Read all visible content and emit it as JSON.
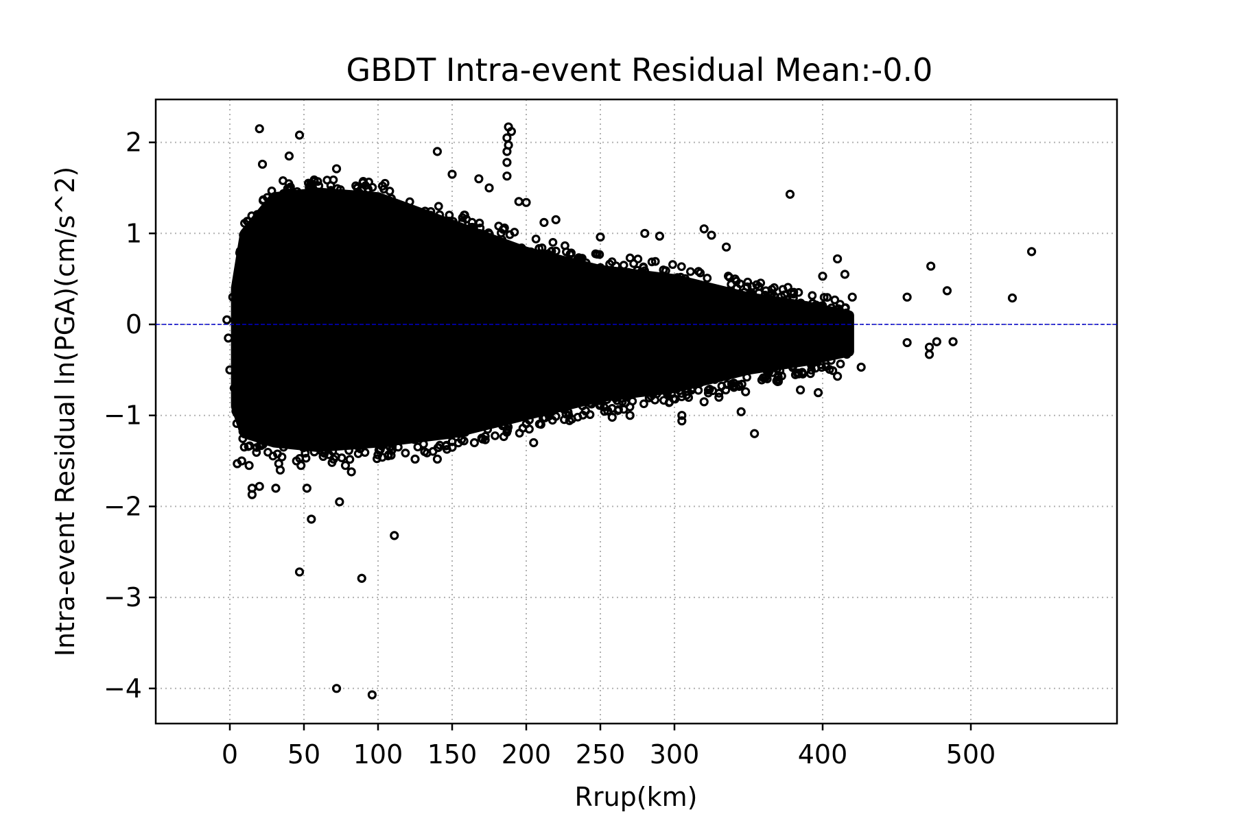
{
  "chart_data": {
    "type": "scatter",
    "title": "GBDT Intra-event Residual Mean:-0.0",
    "xlabel": "Rrup(km)",
    "ylabel": "Intra-event Residual ln(PGA)(cm/s^2)",
    "xlim": [
      -50,
      600
    ],
    "ylim": [
      -4.4,
      2.5
    ],
    "xticks": [
      0,
      50,
      100,
      150,
      200,
      250,
      300,
      400,
      500
    ],
    "yticks": [
      2,
      1,
      0,
      -1,
      -2,
      -3,
      -4
    ],
    "ytick_labels": [
      "2",
      "1",
      "0",
      "−1",
      "−2",
      "−3",
      "−4"
    ],
    "grid": true,
    "reference_line": {
      "y": 0,
      "color": "#0000cc",
      "style": "dashed"
    },
    "marker": {
      "shape": "open-circle",
      "color": "#000000"
    },
    "density": {
      "note_bands": "dense scatter cloud envelope by distance (km) as [x, lower, upper]",
      "envelope": [
        [
          4,
          -0.9,
          0.4
        ],
        [
          10,
          -1.2,
          1.0
        ],
        [
          30,
          -1.3,
          1.4
        ],
        [
          60,
          -1.35,
          1.45
        ],
        [
          100,
          -1.3,
          1.4
        ],
        [
          150,
          -1.2,
          1.1
        ],
        [
          200,
          -1.0,
          0.8
        ],
        [
          250,
          -0.8,
          0.6
        ],
        [
          300,
          -0.7,
          0.5
        ],
        [
          350,
          -0.5,
          0.3
        ],
        [
          390,
          -0.4,
          0.2
        ],
        [
          418,
          -0.3,
          0.1
        ]
      ]
    },
    "points": [
      [
        20,
        2.15
      ],
      [
        47,
        2.08
      ],
      [
        22,
        1.76
      ],
      [
        40,
        1.85
      ],
      [
        72,
        1.71
      ],
      [
        90,
        1.57
      ],
      [
        103,
        1.52
      ],
      [
        140,
        1.9
      ],
      [
        150,
        1.65
      ],
      [
        168,
        1.6
      ],
      [
        175,
        1.5
      ],
      [
        188,
        2.17
      ],
      [
        190,
        2.12
      ],
      [
        187,
        2.05
      ],
      [
        188,
        1.97
      ],
      [
        187,
        1.9
      ],
      [
        187,
        1.78
      ],
      [
        187,
        1.63
      ],
      [
        195,
        1.35
      ],
      [
        200,
        1.34
      ],
      [
        212,
        1.12
      ],
      [
        220,
        1.15
      ],
      [
        250,
        0.96
      ],
      [
        280,
        1.0
      ],
      [
        290,
        0.97
      ],
      [
        320,
        1.05
      ],
      [
        325,
        0.98
      ],
      [
        335,
        0.85
      ],
      [
        378,
        1.43
      ],
      [
        410,
        0.72
      ],
      [
        400,
        0.53
      ],
      [
        415,
        0.55
      ],
      [
        420,
        0.3
      ],
      [
        415,
        0.18
      ],
      [
        406,
        0.18
      ],
      [
        457,
        0.3
      ],
      [
        473,
        0.64
      ],
      [
        484,
        0.37
      ],
      [
        528,
        0.29
      ],
      [
        541,
        0.8
      ],
      [
        457,
        -0.2
      ],
      [
        472,
        -0.25
      ],
      [
        472,
        -0.33
      ],
      [
        477,
        -0.19
      ],
      [
        488,
        -0.19
      ],
      [
        426,
        -0.47
      ],
      [
        410,
        -0.57
      ],
      [
        397,
        -0.75
      ],
      [
        385,
        -0.72
      ],
      [
        370,
        -0.58
      ],
      [
        354,
        -1.2
      ],
      [
        345,
        -0.96
      ],
      [
        348,
        -0.74
      ],
      [
        330,
        -0.8
      ],
      [
        320,
        -0.85
      ],
      [
        305,
        -1.0
      ],
      [
        305,
        -1.06
      ],
      [
        285,
        -0.75
      ],
      [
        270,
        -1.0
      ],
      [
        258,
        -1.02
      ],
      [
        255,
        -0.95
      ],
      [
        240,
        -0.95
      ],
      [
        205,
        -1.3
      ],
      [
        202,
        -1.15
      ],
      [
        202,
        -1.05
      ],
      [
        190,
        -0.95
      ],
      [
        185,
        -1.1
      ],
      [
        178,
        -1.08
      ],
      [
        170,
        -1.25
      ],
      [
        165,
        -1.3
      ],
      [
        150,
        -1.35
      ],
      [
        140,
        -1.48
      ],
      [
        125,
        -1.48
      ],
      [
        110,
        -1.27
      ],
      [
        100,
        -1.3
      ],
      [
        92,
        -1.3
      ],
      [
        82,
        -1.62
      ],
      [
        78,
        -1.55
      ],
      [
        70,
        -1.48
      ],
      [
        63,
        -1.45
      ],
      [
        57,
        -1.4
      ],
      [
        52,
        -1.8
      ],
      [
        45,
        -1.5
      ],
      [
        48,
        -1.55
      ],
      [
        33,
        -1.53
      ],
      [
        34,
        -1.6
      ],
      [
        31,
        -1.8
      ],
      [
        20,
        -1.78
      ],
      [
        15,
        -1.8
      ],
      [
        15,
        -1.87
      ],
      [
        5,
        -1.53
      ],
      [
        8,
        -1.5
      ],
      [
        13,
        -1.55
      ],
      [
        55,
        -2.14
      ],
      [
        74,
        -1.95
      ],
      [
        47,
        -2.72
      ],
      [
        89,
        -2.79
      ],
      [
        111,
        -2.32
      ],
      [
        72,
        -4.0
      ],
      [
        96,
        -4.07
      ],
      [
        -2,
        0.05
      ],
      [
        -1,
        -0.15
      ],
      [
        0,
        -0.5
      ],
      [
        2,
        0.3
      ],
      [
        3,
        -0.7
      ],
      [
        6,
        -0.95
      ]
    ]
  }
}
